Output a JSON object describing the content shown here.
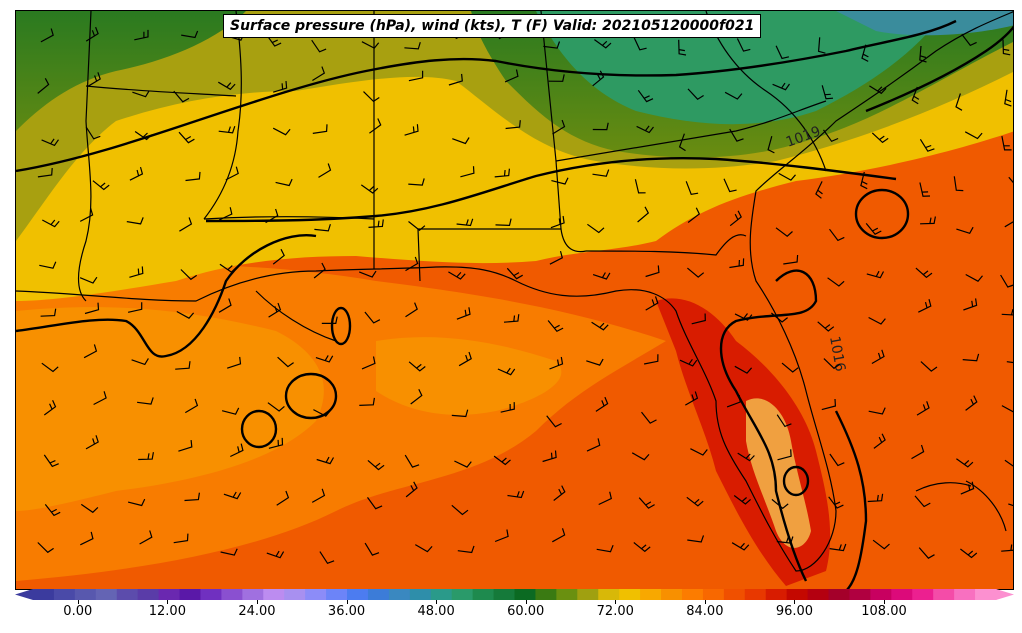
{
  "title": "Surface pressure (hPa), wind (kts), T (F) Valid: 202105120000f021",
  "isobar_labels": [
    "1019",
    "1016"
  ],
  "colorbar": {
    "ticks": [
      "0.00",
      "12.00",
      "24.00",
      "36.00",
      "48.00",
      "60.00",
      "72.00",
      "84.00",
      "96.00",
      "108.00"
    ],
    "range": [
      -6,
      123
    ],
    "colors": [
      "#3b3b9e",
      "#4a4aa8",
      "#5858ae",
      "#6464b4",
      "#5c4cac",
      "#5a3ca8",
      "#6a28b0",
      "#5a18a8",
      "#7030c0",
      "#8a50d0",
      "#a070e0",
      "#bc8cf0",
      "#a890f0",
      "#8c8cf8",
      "#6c84f8",
      "#4c7cf0",
      "#3c7cd8",
      "#3a88c0",
      "#2e8eaa",
      "#2a9a8a",
      "#2a9a6a",
      "#1e8a4e",
      "#157a3a",
      "#0b6a22",
      "#3a7a12",
      "#6a9010",
      "#a0a010",
      "#d8b808",
      "#f0c000",
      "#f8a800",
      "#f89000",
      "#fc7c00",
      "#f86800",
      "#f05000",
      "#e83800",
      "#d81c00",
      "#c40800",
      "#b40010",
      "#a4002a",
      "#b00040",
      "#c80060",
      "#dc0a7a",
      "#ec2090",
      "#f44ca8",
      "#f870c0",
      "#fc90d0"
    ]
  }
}
